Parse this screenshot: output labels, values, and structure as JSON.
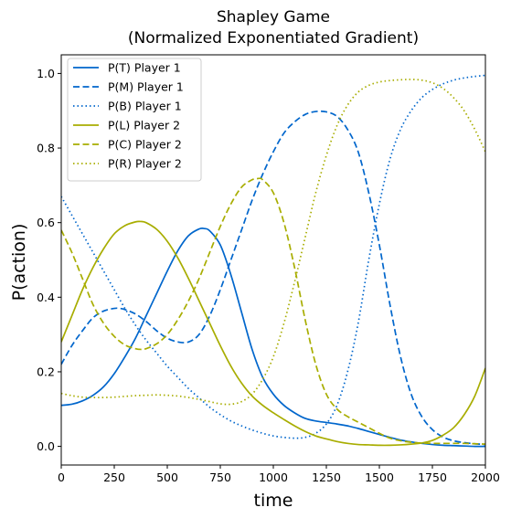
{
  "chart_data": {
    "type": "line",
    "title": "Shapley Game",
    "subtitle": "(Normalized Exponentiated Gradient)",
    "xlabel": "time",
    "ylabel": "P(action)",
    "xlim": [
      0,
      2000
    ],
    "ylim": [
      -0.05,
      1.05
    ],
    "xticks": [
      0,
      250,
      500,
      750,
      1000,
      1250,
      1500,
      1750,
      2000
    ],
    "xtick_labels": [
      "0",
      "250",
      "500",
      "750",
      "1000",
      "1250",
      "1500",
      "1750",
      "2000"
    ],
    "yticks": [
      0.0,
      0.2,
      0.4,
      0.6,
      0.8,
      1.0
    ],
    "ytick_labels": [
      "0.0",
      "0.2",
      "0.4",
      "0.6",
      "0.8",
      "1.0"
    ],
    "grid": false,
    "legend_position": "top-left",
    "series": [
      {
        "name": "P(T) Player 1",
        "color": "#0066cc",
        "style": "solid",
        "x": [
          0,
          50,
          100,
          150,
          200,
          250,
          300,
          350,
          400,
          450,
          500,
          550,
          600,
          650,
          675,
          700,
          750,
          800,
          850,
          900,
          950,
          1000,
          1050,
          1100,
          1150,
          1200,
          1250,
          1300,
          1350,
          1400,
          1450,
          1500,
          1550,
          1600,
          1650,
          1700,
          1750,
          1800,
          1850,
          1900,
          1950,
          2000
        ],
        "y": [
          0.11,
          0.113,
          0.122,
          0.137,
          0.16,
          0.195,
          0.24,
          0.29,
          0.35,
          0.41,
          0.47,
          0.525,
          0.565,
          0.583,
          0.584,
          0.578,
          0.54,
          0.46,
          0.36,
          0.26,
          0.185,
          0.14,
          0.11,
          0.09,
          0.075,
          0.068,
          0.064,
          0.06,
          0.055,
          0.048,
          0.04,
          0.032,
          0.024,
          0.017,
          0.012,
          0.008,
          0.005,
          0.003,
          0.002,
          0.001,
          0.0,
          0.0
        ]
      },
      {
        "name": "P(M) Player 1",
        "color": "#0066cc",
        "style": "dashed",
        "x": [
          0,
          50,
          100,
          150,
          200,
          250,
          275,
          300,
          350,
          400,
          450,
          500,
          550,
          600,
          650,
          700,
          750,
          800,
          850,
          900,
          950,
          1000,
          1050,
          1100,
          1150,
          1200,
          1250,
          1300,
          1350,
          1400,
          1450,
          1500,
          1550,
          1600,
          1650,
          1700,
          1750,
          1800,
          1850,
          1900,
          1950,
          2000
        ],
        "y": [
          0.22,
          0.27,
          0.31,
          0.345,
          0.363,
          0.37,
          0.37,
          0.367,
          0.355,
          0.335,
          0.31,
          0.29,
          0.28,
          0.28,
          0.3,
          0.35,
          0.42,
          0.5,
          0.58,
          0.66,
          0.73,
          0.79,
          0.84,
          0.87,
          0.89,
          0.898,
          0.897,
          0.885,
          0.85,
          0.79,
          0.68,
          0.54,
          0.38,
          0.24,
          0.14,
          0.08,
          0.045,
          0.025,
          0.015,
          0.01,
          0.007,
          0.005
        ]
      },
      {
        "name": "P(B) Player 1",
        "color": "#0066cc",
        "style": "dotted",
        "x": [
          0,
          50,
          100,
          150,
          200,
          250,
          300,
          350,
          400,
          450,
          500,
          550,
          600,
          650,
          700,
          750,
          800,
          850,
          900,
          950,
          1000,
          1050,
          1100,
          1150,
          1200,
          1250,
          1300,
          1350,
          1400,
          1450,
          1500,
          1550,
          1600,
          1650,
          1700,
          1750,
          1800,
          1850,
          1900,
          1950,
          2000
        ],
        "y": [
          0.67,
          0.62,
          0.57,
          0.52,
          0.47,
          0.42,
          0.37,
          0.325,
          0.285,
          0.25,
          0.215,
          0.185,
          0.155,
          0.13,
          0.105,
          0.085,
          0.068,
          0.055,
          0.044,
          0.035,
          0.028,
          0.024,
          0.022,
          0.024,
          0.035,
          0.06,
          0.11,
          0.2,
          0.33,
          0.5,
          0.65,
          0.77,
          0.85,
          0.9,
          0.935,
          0.957,
          0.972,
          0.982,
          0.988,
          0.992,
          0.995
        ]
      },
      {
        "name": "P(L) Player 2",
        "color": "#a8ad00",
        "style": "solid",
        "x": [
          0,
          50,
          100,
          150,
          200,
          250,
          300,
          350,
          375,
          400,
          450,
          500,
          550,
          600,
          650,
          700,
          750,
          800,
          850,
          900,
          950,
          1000,
          1050,
          1100,
          1150,
          1200,
          1250,
          1300,
          1350,
          1400,
          1450,
          1500,
          1550,
          1600,
          1650,
          1700,
          1750,
          1800,
          1850,
          1900,
          1950,
          2000
        ],
        "y": [
          0.28,
          0.35,
          0.42,
          0.48,
          0.53,
          0.57,
          0.592,
          0.602,
          0.603,
          0.6,
          0.582,
          0.55,
          0.505,
          0.45,
          0.39,
          0.33,
          0.27,
          0.215,
          0.17,
          0.135,
          0.11,
          0.09,
          0.072,
          0.055,
          0.04,
          0.028,
          0.02,
          0.013,
          0.008,
          0.005,
          0.004,
          0.003,
          0.003,
          0.004,
          0.006,
          0.009,
          0.016,
          0.03,
          0.05,
          0.085,
          0.135,
          0.21
        ]
      },
      {
        "name": "P(C) Player 2",
        "color": "#a8ad00",
        "style": "dashed",
        "x": [
          0,
          50,
          100,
          150,
          200,
          250,
          300,
          350,
          375,
          400,
          450,
          500,
          550,
          600,
          650,
          700,
          750,
          800,
          850,
          900,
          925,
          950,
          1000,
          1050,
          1100,
          1150,
          1200,
          1250,
          1300,
          1350,
          1400,
          1450,
          1500,
          1550,
          1600,
          1650,
          1700,
          1750,
          1800,
          1850,
          1900,
          1950,
          2000
        ],
        "y": [
          0.58,
          0.52,
          0.45,
          0.38,
          0.33,
          0.295,
          0.272,
          0.262,
          0.26,
          0.262,
          0.275,
          0.3,
          0.34,
          0.39,
          0.45,
          0.52,
          0.59,
          0.65,
          0.695,
          0.715,
          0.718,
          0.715,
          0.68,
          0.6,
          0.48,
          0.34,
          0.22,
          0.14,
          0.1,
          0.08,
          0.065,
          0.05,
          0.035,
          0.022,
          0.015,
          0.011,
          0.009,
          0.008,
          0.008,
          0.008,
          0.008,
          0.007,
          0.006
        ]
      },
      {
        "name": "P(R) Player 2",
        "color": "#a8ad00",
        "style": "dotted",
        "x": [
          0,
          50,
          100,
          150,
          200,
          250,
          300,
          350,
          400,
          450,
          500,
          550,
          600,
          650,
          700,
          750,
          800,
          850,
          900,
          950,
          1000,
          1050,
          1100,
          1150,
          1200,
          1250,
          1300,
          1350,
          1400,
          1450,
          1500,
          1550,
          1600,
          1650,
          1700,
          1750,
          1800,
          1850,
          1900,
          1950,
          2000
        ],
        "y": [
          0.142,
          0.136,
          0.132,
          0.131,
          0.131,
          0.132,
          0.134,
          0.136,
          0.137,
          0.138,
          0.137,
          0.135,
          0.131,
          0.126,
          0.12,
          0.114,
          0.113,
          0.12,
          0.14,
          0.18,
          0.24,
          0.33,
          0.44,
          0.56,
          0.68,
          0.78,
          0.86,
          0.915,
          0.95,
          0.968,
          0.977,
          0.981,
          0.983,
          0.984,
          0.982,
          0.975,
          0.96,
          0.935,
          0.9,
          0.85,
          0.79
        ]
      }
    ]
  }
}
